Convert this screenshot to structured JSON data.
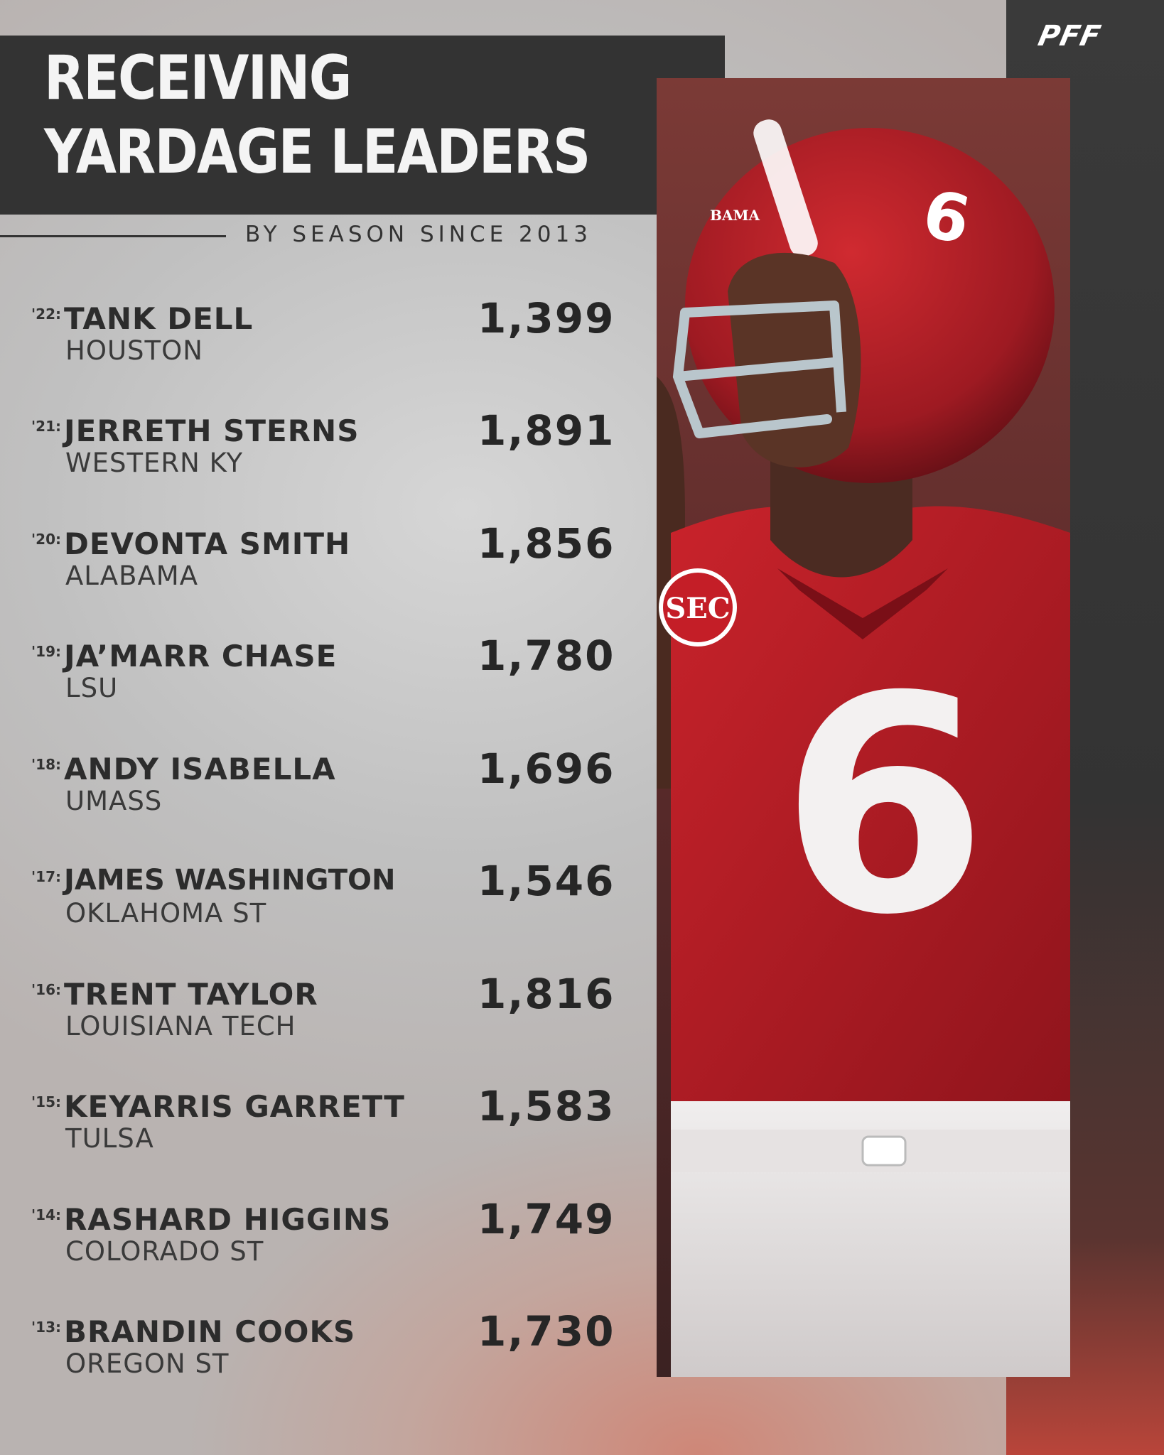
{
  "header": {
    "title_line1": "RECEIVING",
    "title_line2": "YARDAGE LEADERS",
    "subtitle": "BY SEASON SINCE 2013",
    "brand": "PFF"
  },
  "photo": {
    "helmet_text": "BAMA",
    "jersey_number": "6",
    "patch_text": "SEC"
  },
  "leaders": [
    {
      "season": "'22:",
      "player": "TANK DELL",
      "school": "HOUSTON",
      "yards": "1,399"
    },
    {
      "season": "'21:",
      "player": "JERRETH STERNS",
      "school": "WESTERN KY",
      "yards": "1,891"
    },
    {
      "season": "'20:",
      "player": "DEVONTA SMITH",
      "school": "ALABAMA",
      "yards": "1,856"
    },
    {
      "season": "'19:",
      "player": "JA’MARR CHASE",
      "school": "LSU",
      "yards": "1,780"
    },
    {
      "season": "'18:",
      "player": "ANDY ISABELLA",
      "school": "UMASS",
      "yards": "1,696"
    },
    {
      "season": "'17:",
      "player": "JAMES WASHINGTON",
      "school": "OKLAHOMA ST",
      "yards": "1,546"
    },
    {
      "season": "'16:",
      "player": "TRENT TAYLOR",
      "school": "LOUISIANA TECH",
      "yards": "1,816"
    },
    {
      "season": "'15:",
      "player": "KEYARRIS GARRETT",
      "school": "TULSA",
      "yards": "1,583"
    },
    {
      "season": "'14:",
      "player": "RASHARD HIGGINS",
      "school": "COLORADO ST",
      "yards": "1,749"
    },
    {
      "season": "'13:",
      "player": "BRANDIN COOKS",
      "school": "OREGON ST",
      "yards": "1,730"
    }
  ],
  "colors": {
    "dark": "#333333",
    "crimson": "#b3202a",
    "text": "#2c2c2c"
  }
}
